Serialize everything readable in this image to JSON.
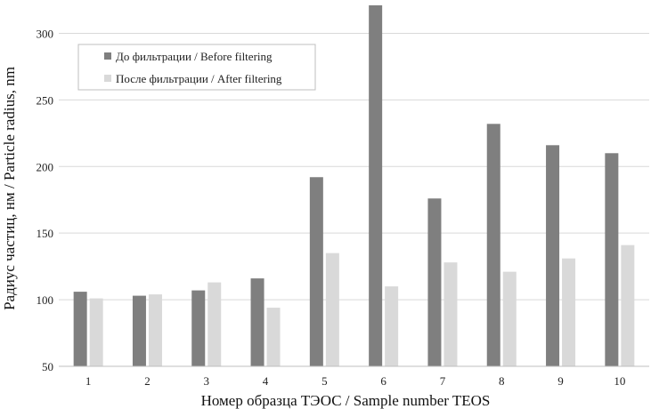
{
  "chart_data": {
    "type": "bar",
    "categories": [
      "1",
      "2",
      "3",
      "4",
      "5",
      "6",
      "7",
      "8",
      "9",
      "10"
    ],
    "series": [
      {
        "name": "До фильтрации / Before filtering",
        "values": [
          106,
          103,
          107,
          116,
          192,
          321,
          176,
          232,
          216,
          210
        ],
        "color": "#7f7f7f"
      },
      {
        "name": "После фильтрации / After filtering",
        "values": [
          101,
          104,
          113,
          94,
          135,
          110,
          128,
          121,
          131,
          141
        ],
        "color": "#d9d9d9"
      }
    ],
    "xlabel": "Номер образца ТЭОС / Sample number TEOS",
    "ylabel": "Радиус частиц, нм / Particle radius, nm",
    "ylim": [
      50,
      325
    ],
    "yticks": [
      50,
      100,
      150,
      200,
      250,
      300
    ],
    "grid": true,
    "legend_position": "top-left"
  }
}
